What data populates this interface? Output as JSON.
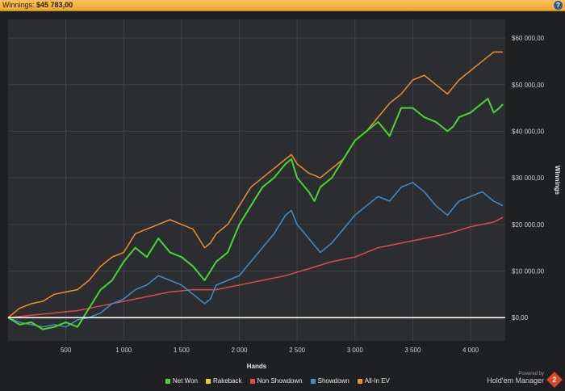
{
  "header": {
    "label": "Winnings:",
    "value": "$45 783,00",
    "help_icon": "question-icon"
  },
  "footer": {
    "powered_line1": "Powered by",
    "powered_line2": "Hold'em Manager",
    "logo_text": "2"
  },
  "chart_data": {
    "type": "line",
    "xlabel": "Hands",
    "ylabel": "Winnings",
    "xlim": [
      0,
      4300
    ],
    "ylim": [
      -5000,
      64000
    ],
    "x_ticks": [
      500,
      1000,
      1500,
      2000,
      2500,
      3000,
      3500,
      4000
    ],
    "x_tick_labels": [
      "500",
      "1 000",
      "1 500",
      "2 000",
      "2 500",
      "3 000",
      "3 500",
      "4 000"
    ],
    "y_ticks": [
      0,
      10000,
      20000,
      30000,
      40000,
      50000,
      60000
    ],
    "y_tick_labels": [
      "$0,00",
      "$10 000,00",
      "$20 000,00",
      "$30 000,00",
      "$40 000,00",
      "$50 000,00",
      "$60 000,00"
    ],
    "grid": true,
    "legend_position": "bottom",
    "zero_line": true,
    "series": [
      {
        "name": "Net Won",
        "color": "#48d631",
        "x": [
          0,
          100,
          200,
          300,
          400,
          500,
          600,
          700,
          800,
          900,
          1000,
          1100,
          1200,
          1300,
          1400,
          1500,
          1600,
          1700,
          1750,
          1800,
          1900,
          2000,
          2100,
          2200,
          2300,
          2400,
          2450,
          2500,
          2600,
          2650,
          2700,
          2800,
          2900,
          3000,
          3100,
          3200,
          3300,
          3400,
          3500,
          3600,
          3700,
          3800,
          3850,
          3900,
          4000,
          4100,
          4150,
          4200,
          4250,
          4280
        ],
        "values": [
          0,
          -1500,
          -1000,
          -2500,
          -2000,
          -1000,
          -2000,
          2000,
          6000,
          8000,
          12000,
          15000,
          13000,
          17000,
          14000,
          13000,
          11000,
          8000,
          10000,
          12000,
          14000,
          20000,
          24000,
          28000,
          30000,
          33000,
          34000,
          30000,
          27000,
          25000,
          28000,
          30000,
          34000,
          38000,
          40000,
          42000,
          39000,
          45000,
          45000,
          43000,
          42000,
          40000,
          41000,
          43000,
          44000,
          46000,
          47000,
          44000,
          45000,
          45800
        ]
      },
      {
        "name": "Rakeback",
        "color": "#e8d130",
        "x": [
          0,
          4280
        ],
        "values": [
          0,
          0
        ]
      },
      {
        "name": "Non Showdown",
        "color": "#e04a48",
        "x": [
          0,
          200,
          400,
          600,
          800,
          1000,
          1200,
          1400,
          1600,
          1800,
          2000,
          2200,
          2400,
          2600,
          2800,
          3000,
          3200,
          3400,
          3600,
          3800,
          4000,
          4200,
          4280
        ],
        "values": [
          0,
          500,
          1000,
          1500,
          2500,
          3500,
          4500,
          5500,
          6000,
          6000,
          7000,
          8000,
          9000,
          10500,
          12000,
          13000,
          15000,
          16000,
          17000,
          18000,
          19500,
          20500,
          21500
        ]
      },
      {
        "name": "Showdown",
        "color": "#3c8fd3",
        "x": [
          0,
          100,
          200,
          300,
          400,
          500,
          600,
          700,
          800,
          900,
          1000,
          1100,
          1200,
          1300,
          1400,
          1500,
          1600,
          1700,
          1750,
          1800,
          1900,
          2000,
          2100,
          2200,
          2300,
          2400,
          2450,
          2500,
          2600,
          2700,
          2800,
          2900,
          3000,
          3100,
          3200,
          3300,
          3400,
          3500,
          3600,
          3700,
          3800,
          3900,
          4000,
          4100,
          4200,
          4280
        ],
        "values": [
          0,
          -1000,
          -1500,
          -2000,
          -1500,
          -2000,
          -500,
          0,
          1000,
          3000,
          4000,
          6000,
          7000,
          9000,
          8000,
          7000,
          5000,
          3000,
          4000,
          7000,
          8000,
          9000,
          12000,
          15000,
          18000,
          22000,
          23000,
          20000,
          17000,
          14000,
          16000,
          19000,
          22000,
          24000,
          26000,
          25000,
          28000,
          29000,
          27000,
          24000,
          22000,
          25000,
          26000,
          27000,
          25000,
          24000
        ]
      },
      {
        "name": "All-In EV",
        "color": "#f08e2c",
        "x": [
          0,
          100,
          200,
          300,
          400,
          500,
          600,
          700,
          800,
          900,
          1000,
          1100,
          1200,
          1300,
          1400,
          1500,
          1600,
          1700,
          1750,
          1800,
          1900,
          2000,
          2100,
          2200,
          2300,
          2400,
          2450,
          2500,
          2600,
          2700,
          2800,
          2900,
          3000,
          3100,
          3200,
          3300,
          3400,
          3500,
          3600,
          3700,
          3800,
          3900,
          4000,
          4100,
          4200,
          4280
        ],
        "values": [
          0,
          2000,
          3000,
          3500,
          5000,
          5500,
          6000,
          8000,
          11000,
          13000,
          14000,
          18000,
          19000,
          20000,
          21000,
          20000,
          19000,
          15000,
          16000,
          18000,
          20000,
          24000,
          28000,
          30000,
          32000,
          34000,
          35000,
          33000,
          31000,
          30000,
          32000,
          34000,
          38000,
          40000,
          43000,
          46000,
          48000,
          51000,
          52000,
          50000,
          48000,
          51000,
          53000,
          55000,
          57000,
          57000
        ]
      }
    ]
  }
}
